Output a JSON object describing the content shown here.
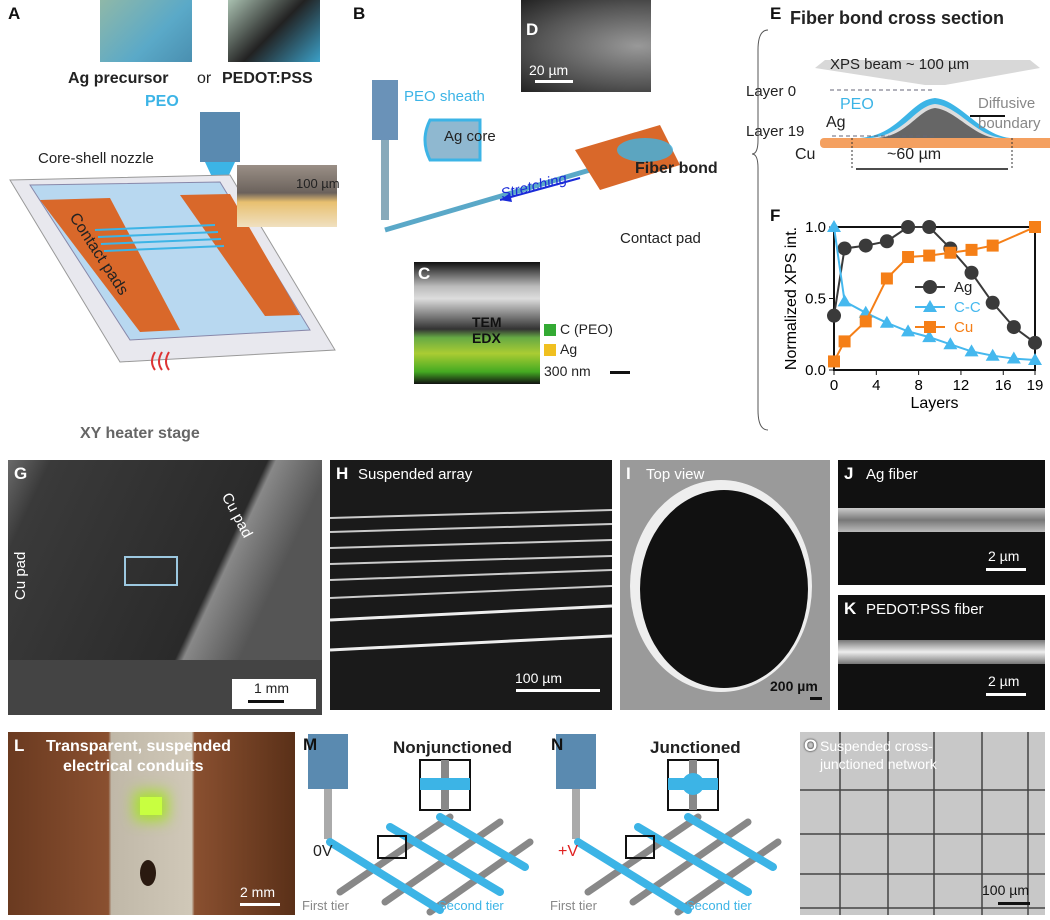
{
  "colors": {
    "peo": "#3cb4e6",
    "ag": "#3a3a3a",
    "cu": "#f07d1a",
    "pad": "#d9682a",
    "red": "#e02020"
  },
  "A": {
    "label": "A",
    "ag": "Ag precursor",
    "or": "or",
    "pedot": "PEDOT:PSS",
    "peo": "PEO",
    "nozzle": "Core-shell nozzle",
    "scale": "100 µm",
    "pads": "Contact pads",
    "stage": "XY heater stage"
  },
  "B": {
    "label": "B",
    "sheath": "PEO sheath",
    "core": "Ag core",
    "stretch": "Stretching",
    "bond": "Fiber bond",
    "pad": "Contact pad"
  },
  "C": {
    "label": "C",
    "tem": "TEM",
    "edx": "EDX",
    "c": "C (PEO)",
    "ag": "Ag",
    "scale": "300 nm"
  },
  "D": {
    "label": "D",
    "scale": "20 µm"
  },
  "E": {
    "label": "E",
    "title": "Fiber bond cross section",
    "beam": "XPS beam ~ 100 µm",
    "layer0": "Layer 0",
    "layer19": "Layer 19",
    "peo": "PEO",
    "ag": "Ag",
    "boundary1": "Diffusive",
    "boundary2": "boundary",
    "cu": "Cu",
    "width": "~60 µm"
  },
  "chart_data": {
    "label": "F",
    "type": "line",
    "xlabel": "Layers",
    "ylabel": "Normalized XPS int.",
    "xlim": [
      0,
      19
    ],
    "ylim": [
      0,
      1
    ],
    "xticks": [
      "0",
      "4",
      "8",
      "12",
      "16",
      "19"
    ],
    "yticks": [
      "0.0",
      "0.5",
      "1.0"
    ],
    "legend": "center-right",
    "series": [
      {
        "name": "Ag",
        "marker": "circle",
        "color": "#3a3a3a",
        "x": [
          0,
          1,
          3,
          5,
          7,
          9,
          11,
          13,
          15,
          17,
          19
        ],
        "y": [
          0.38,
          0.85,
          0.87,
          0.9,
          1.0,
          1.0,
          0.85,
          0.68,
          0.47,
          0.3,
          0.19
        ]
      },
      {
        "name": "C-C",
        "marker": "triangle",
        "color": "#45b8ee",
        "x": [
          0,
          1,
          3,
          5,
          7,
          9,
          11,
          13,
          15,
          17,
          19
        ],
        "y": [
          1.0,
          0.48,
          0.4,
          0.33,
          0.27,
          0.23,
          0.18,
          0.13,
          0.1,
          0.08,
          0.07
        ]
      },
      {
        "name": "Cu",
        "marker": "square",
        "color": "#f57f17",
        "x": [
          0,
          1,
          3,
          5,
          7,
          9,
          11,
          13,
          15,
          19
        ],
        "y": [
          0.06,
          0.2,
          0.34,
          0.64,
          0.79,
          0.8,
          0.82,
          0.84,
          0.87,
          1.0
        ]
      }
    ]
  },
  "G": {
    "label": "G",
    "pad1": "Cu pad",
    "pad2": "Cu pad",
    "scale": "1 mm"
  },
  "H": {
    "label": "H",
    "title": "Suspended array",
    "scale": "100 µm"
  },
  "I": {
    "label": "I",
    "title": "Top view",
    "scale": "200 µm"
  },
  "J": {
    "label": "J",
    "title": "Ag fiber",
    "scale": "2 µm"
  },
  "K": {
    "label": "K",
    "title": "PEDOT:PSS fiber",
    "scale": "2 µm"
  },
  "L": {
    "label": "L",
    "title1": "Transparent, suspended",
    "title2": "electrical conduits",
    "scale": "2 mm"
  },
  "M": {
    "label": "M",
    "title": "Nonjunctioned",
    "voltage": "0V",
    "first": "First tier",
    "second": "Second tier"
  },
  "N": {
    "label": "N",
    "title": "Junctioned",
    "voltage": "+V",
    "first": "First tier",
    "second": "Second tier"
  },
  "O": {
    "label": "O",
    "title1": "Suspended cross-",
    "title2": "junctioned network",
    "scale": "100 µm"
  }
}
